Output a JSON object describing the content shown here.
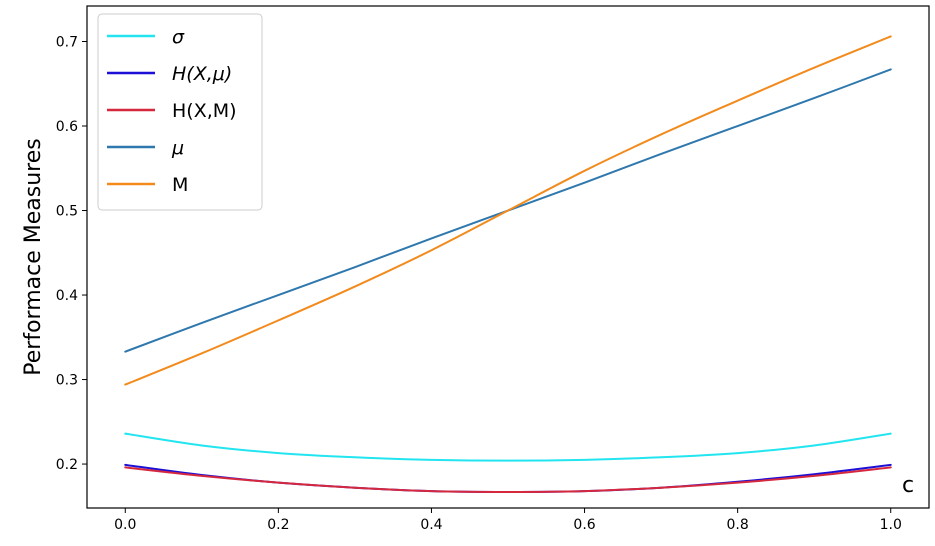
{
  "chart_data": {
    "type": "line",
    "title": "",
    "xlabel": "c",
    "ylabel": "Performace Measures",
    "xlim": [
      -0.05,
      1.05
    ],
    "ylim": [
      0.148,
      0.742
    ],
    "x_ticks": [
      0.0,
      0.2,
      0.4,
      0.6,
      0.8,
      1.0
    ],
    "x_tick_labels": [
      "0.0",
      "0.2",
      "0.4",
      "0.6",
      "0.8",
      "1.0"
    ],
    "y_ticks": [
      0.2,
      0.3,
      0.4,
      0.5,
      0.6,
      0.7
    ],
    "y_tick_labels": [
      "0.2",
      "0.3",
      "0.4",
      "0.5",
      "0.6",
      "0.7"
    ],
    "grid": false,
    "legend_position": "top-left",
    "x": [
      0.0,
      0.1,
      0.2,
      0.3,
      0.4,
      0.5,
      0.6,
      0.7,
      0.8,
      0.9,
      1.0
    ],
    "series": [
      {
        "name": "σ",
        "italic": true,
        "color": "#22e5f0",
        "values": [
          0.236,
          0.222,
          0.213,
          0.208,
          0.205,
          0.204,
          0.205,
          0.208,
          0.213,
          0.222,
          0.236
        ]
      },
      {
        "name": "H(X,μ)",
        "italic": true,
        "color": "#1d10d6",
        "values": [
          0.199,
          0.187,
          0.178,
          0.172,
          0.168,
          0.167,
          0.168,
          0.172,
          0.179,
          0.188,
          0.199
        ]
      },
      {
        "name": "H(X,M)",
        "italic": false,
        "color": "#d6283d",
        "values": [
          0.196,
          0.186,
          0.178,
          0.172,
          0.168,
          0.167,
          0.168,
          0.172,
          0.178,
          0.186,
          0.196
        ]
      },
      {
        "name": "μ",
        "italic": true,
        "color": "#2f78ae",
        "values": [
          0.333,
          0.367,
          0.4,
          0.433,
          0.467,
          0.5,
          0.533,
          0.567,
          0.6,
          0.633,
          0.667
        ]
      },
      {
        "name": "M",
        "italic": false,
        "color": "#f28a1c",
        "values": [
          0.294,
          0.331,
          0.37,
          0.41,
          0.453,
          0.5,
          0.547,
          0.59,
          0.63,
          0.669,
          0.706
        ]
      }
    ]
  }
}
